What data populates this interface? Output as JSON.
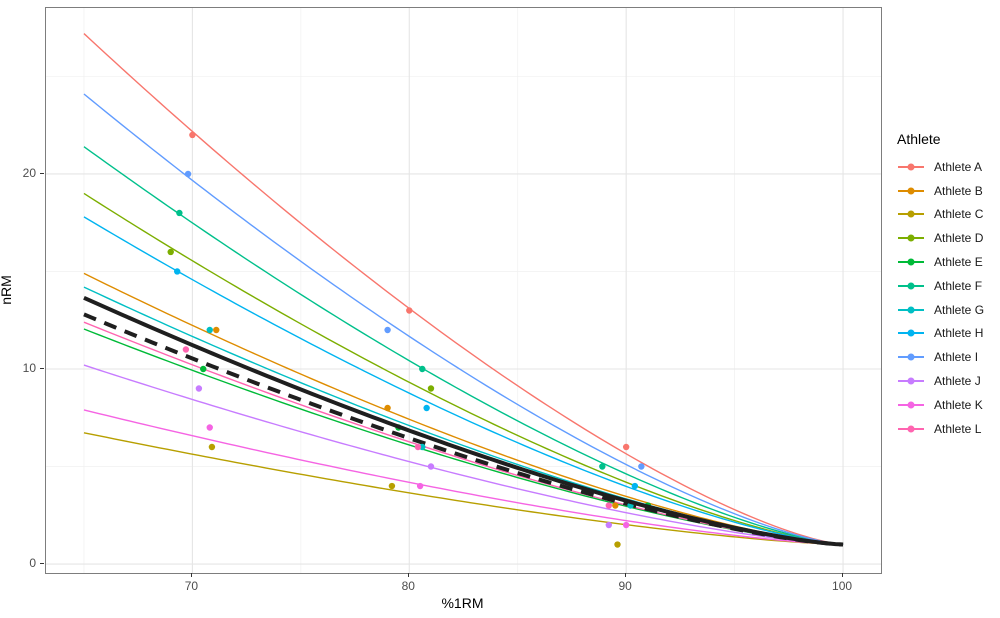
{
  "figure": {
    "background_color": "#ffffff",
    "panel_border_color": "#7d7d7d",
    "grid_major_color": "#e5e5e5",
    "grid_minor_color": "#f0f0f0",
    "tick_color": "#333333",
    "tick_label_color": "#4d4d4d",
    "summary_line_color": "#1f1f1f"
  },
  "x_axis": {
    "title": "%1RM",
    "ticks": [
      70,
      80,
      90,
      100
    ],
    "minor_gridlines": [
      65,
      75,
      85,
      95
    ]
  },
  "y_axis": {
    "title": "nRM",
    "ticks": [
      0,
      10,
      20
    ],
    "minor_gridlines": [
      5,
      15,
      25
    ]
  },
  "legend": {
    "title": "Athlete",
    "entries": [
      {
        "label": "Athlete A",
        "color": "#F8766D"
      },
      {
        "label": "Athlete B",
        "color": "#DE8C00"
      },
      {
        "label": "Athlete C",
        "color": "#B79F00"
      },
      {
        "label": "Athlete D",
        "color": "#7CAE00"
      },
      {
        "label": "Athlete E",
        "color": "#00BA38"
      },
      {
        "label": "Athlete F",
        "color": "#00C08B"
      },
      {
        "label": "Athlete G",
        "color": "#00BFC4"
      },
      {
        "label": "Athlete H",
        "color": "#00B4F0"
      },
      {
        "label": "Athlete I",
        "color": "#619CFF"
      },
      {
        "label": "Athlete J",
        "color": "#C77CFF"
      },
      {
        "label": "Athlete K",
        "color": "#F564E3"
      },
      {
        "label": "Athlete L",
        "color": "#FF64B0"
      }
    ]
  },
  "chart_data": {
    "type": "scatter",
    "title": "",
    "xlabel": "%1RM",
    "ylabel": "nRM",
    "xlim": [
      63.25,
      101.75
    ],
    "ylim": [
      -0.46,
      28.51
    ],
    "x_ticks": [
      70,
      80,
      90,
      100
    ],
    "y_ticks": [
      0,
      10,
      20
    ],
    "grid": true,
    "legend_position": "right",
    "curve_model": {
      "description": "each curve: nRM = 1 + k * ((100 - x) / 35) ^ exponent, drawn for x in [65,100], converging to (100, 1)",
      "exponent": 1.38,
      "x_start": 65,
      "x_end": 100,
      "end_value": 1
    },
    "series": [
      {
        "name": "Athlete A",
        "color": "#F8766D",
        "k": 26.2,
        "points": [
          [
            70,
            22
          ],
          [
            80,
            13
          ],
          [
            90,
            6
          ]
        ]
      },
      {
        "name": "Athlete B",
        "color": "#DE8C00",
        "k": 13.9,
        "points": [
          [
            71.1,
            12
          ],
          [
            79,
            8
          ],
          [
            89.5,
            3
          ]
        ]
      },
      {
        "name": "Athlete C",
        "color": "#B79F00",
        "k": 5.73,
        "points": [
          [
            70.9,
            6
          ],
          [
            79.2,
            4
          ],
          [
            89.6,
            1
          ]
        ]
      },
      {
        "name": "Athlete D",
        "color": "#7CAE00",
        "k": 18.0,
        "points": [
          [
            69,
            16
          ],
          [
            81,
            9
          ]
        ]
      },
      {
        "name": "Athlete E",
        "color": "#00BA38",
        "k": 11.05,
        "points": [
          [
            70.5,
            10
          ],
          [
            79.5,
            7
          ],
          [
            91,
            3
          ]
        ]
      },
      {
        "name": "Athlete F",
        "color": "#00C08B",
        "k": 20.4,
        "points": [
          [
            69.4,
            18
          ],
          [
            80.6,
            10
          ],
          [
            88.9,
            5
          ]
        ]
      },
      {
        "name": "Athlete G",
        "color": "#00BFC4",
        "k": 13.2,
        "points": [
          [
            70.8,
            12
          ],
          [
            80.6,
            6
          ],
          [
            90.2,
            3
          ]
        ]
      },
      {
        "name": "Athlete H",
        "color": "#00B4F0",
        "k": 16.8,
        "points": [
          [
            69.3,
            15
          ],
          [
            80.8,
            8
          ],
          [
            90.4,
            4
          ]
        ]
      },
      {
        "name": "Athlete I",
        "color": "#619CFF",
        "k": 23.1,
        "points": [
          [
            69.8,
            20
          ],
          [
            79,
            12
          ],
          [
            90.7,
            5
          ]
        ]
      },
      {
        "name": "Athlete J",
        "color": "#C77CFF",
        "k": 9.2,
        "points": [
          [
            70.3,
            9
          ],
          [
            81,
            5
          ],
          [
            89.2,
            2
          ]
        ]
      },
      {
        "name": "Athlete K",
        "color": "#F564E3",
        "k": 6.9,
        "points": [
          [
            70.8,
            7
          ],
          [
            80.5,
            4
          ],
          [
            90,
            2
          ]
        ]
      },
      {
        "name": "Athlete L",
        "color": "#FF64B0",
        "k": 11.4,
        "points": [
          [
            69.7,
            11
          ],
          [
            80.4,
            6
          ],
          [
            89.2,
            3
          ]
        ]
      }
    ],
    "summary_lines": [
      {
        "name": "group curve solid",
        "color": "#1f1f1f",
        "k": 12.65,
        "style": "solid",
        "width": 4
      },
      {
        "name": "group curve dashed",
        "color": "#1f1f1f",
        "k": 11.8,
        "style": "dashed",
        "width": 4
      }
    ]
  }
}
